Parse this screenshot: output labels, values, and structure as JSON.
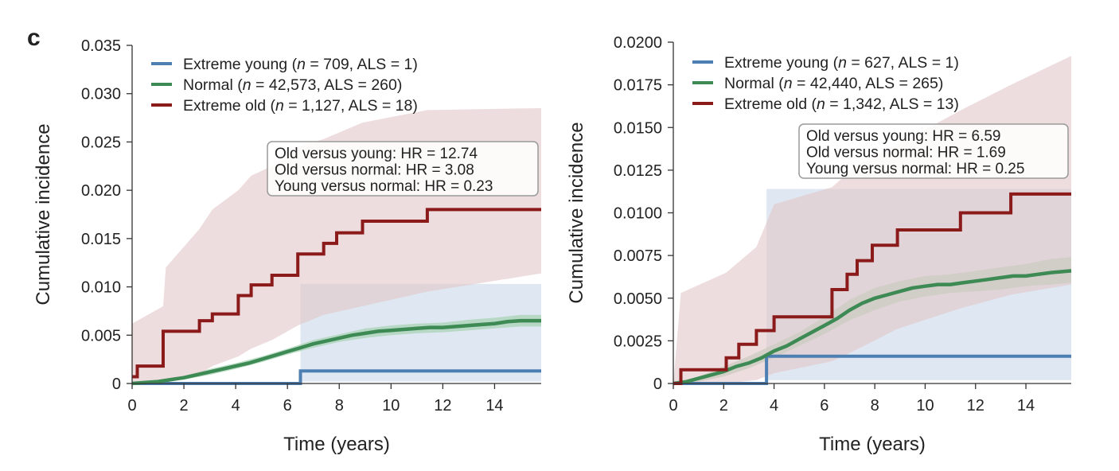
{
  "panel_letter": "c",
  "chart_data": [
    {
      "type": "line",
      "subtype": "cumulative-incidence-step",
      "xlabel": "Time (years)",
      "ylabel": "Cumulative incidence",
      "xlim": [
        0,
        15.8
      ],
      "ylim": [
        0,
        0.035
      ],
      "xticks": [
        0,
        2,
        4,
        6,
        8,
        10,
        12,
        14
      ],
      "xtick_labels": [
        "0",
        "2",
        "4",
        "6",
        "8",
        "10",
        "12",
        "14"
      ],
      "yticks": [
        0,
        0.005,
        0.01,
        0.015,
        0.02,
        0.025,
        0.03,
        0.035
      ],
      "ytick_labels": [
        "0",
        "0.005",
        "0.010",
        "0.015",
        "0.020",
        "0.025",
        "0.030",
        "0.035"
      ],
      "grid": false,
      "legend_position": "top-left",
      "annotation_box": {
        "position": "upper-right",
        "lines": [
          "Old versus young: HR = 12.74",
          "Old versus normal: HR = 3.08",
          "Young versus normal: HR = 0.23"
        ]
      },
      "series": [
        {
          "label_prefix": "Extreme young (",
          "label_italic": "n",
          "label_suffix": " = 709, ALS = 1)",
          "color": "#4e7fb3",
          "band_color": "#c9d8ea",
          "step": true,
          "x": [
            0,
            6.5,
            6.5,
            15.8
          ],
          "y": [
            0,
            0,
            0.0013,
            0.0013
          ],
          "ci_x": [
            0,
            6.5,
            6.5,
            15.8
          ],
          "ci_lower": [
            0,
            0,
            0.0002,
            0.0002
          ],
          "ci_upper": [
            0,
            0,
            0.0103,
            0.0103
          ]
        },
        {
          "label_prefix": "Normal (",
          "label_italic": "n",
          "label_suffix": " = 42,573, ALS = 260)",
          "color": "#3d8a55",
          "band_color": "#a9d3b5",
          "step": false,
          "x": [
            0,
            0.5,
            1,
            1.5,
            2,
            2.5,
            3,
            3.5,
            4,
            4.5,
            5,
            5.5,
            6,
            6.5,
            7,
            7.5,
            8,
            8.5,
            9,
            9.5,
            10,
            10.5,
            11,
            11.5,
            12,
            12.5,
            13,
            13.5,
            14,
            14.5,
            15,
            15.8
          ],
          "y": [
            0,
            0.0001,
            0.0002,
            0.0004,
            0.0006,
            0.0009,
            0.0012,
            0.0015,
            0.0018,
            0.0021,
            0.0025,
            0.0029,
            0.0033,
            0.0037,
            0.0041,
            0.0044,
            0.0047,
            0.005,
            0.0052,
            0.0054,
            0.0055,
            0.0056,
            0.0057,
            0.0058,
            0.0058,
            0.0059,
            0.006,
            0.0061,
            0.0062,
            0.0064,
            0.0065,
            0.0065
          ],
          "ci_x": [
            0,
            1,
            2,
            3,
            4,
            5,
            6,
            7,
            8,
            9,
            10,
            11,
            12,
            13,
            14,
            15,
            15.8
          ],
          "ci_lower": [
            0,
            0.0001,
            0.0004,
            0.0009,
            0.0015,
            0.0022,
            0.003,
            0.0037,
            0.0043,
            0.0047,
            0.005,
            0.0052,
            0.0053,
            0.0055,
            0.0057,
            0.0059,
            0.0059
          ],
          "ci_upper": [
            0,
            0.0003,
            0.0008,
            0.0015,
            0.0021,
            0.0028,
            0.0036,
            0.0045,
            0.0051,
            0.0057,
            0.006,
            0.0062,
            0.0063,
            0.0066,
            0.0068,
            0.0071,
            0.0071
          ]
        },
        {
          "label_prefix": "Extreme old (",
          "label_italic": "n",
          "label_suffix": " = 1,127, ALS = 18)",
          "color": "#8b1a1a",
          "band_color": "#e3c6c8",
          "step": true,
          "x": [
            0,
            0.2,
            0.2,
            1.2,
            1.2,
            2.6,
            2.6,
            3.1,
            3.1,
            4.1,
            4.1,
            4.6,
            4.6,
            5.4,
            5.4,
            6.4,
            6.4,
            7.4,
            7.4,
            7.9,
            7.9,
            8.9,
            8.9,
            11.4,
            11.4,
            15.8
          ],
          "y": [
            0.0007,
            0.0007,
            0.0018,
            0.0018,
            0.0054,
            0.0054,
            0.0065,
            0.0065,
            0.0072,
            0.0072,
            0.0091,
            0.0091,
            0.0102,
            0.0102,
            0.0112,
            0.0112,
            0.0134,
            0.0134,
            0.0145,
            0.0145,
            0.0156,
            0.0156,
            0.0168,
            0.0168,
            0.018,
            0.018
          ],
          "ci_x": [
            0,
            1.2,
            1.3,
            2.6,
            3.1,
            4.1,
            4.6,
            5.4,
            6.4,
            7.4,
            8.9,
            11.4,
            15.8
          ],
          "ci_lower": [
            0,
            0.0003,
            0.0004,
            0.001,
            0.0018,
            0.0028,
            0.0036,
            0.0045,
            0.006,
            0.0071,
            0.008,
            0.0095,
            0.0114
          ],
          "ci_upper": [
            0.0062,
            0.008,
            0.012,
            0.016,
            0.018,
            0.02,
            0.0215,
            0.0225,
            0.0245,
            0.0253,
            0.027,
            0.0283,
            0.0285
          ]
        }
      ]
    },
    {
      "type": "line",
      "subtype": "cumulative-incidence-step",
      "xlabel": "Time (years)",
      "ylabel": "Cumulative incidence",
      "xlim": [
        0,
        15.8
      ],
      "ylim": [
        0,
        0.02
      ],
      "xticks": [
        0,
        2,
        4,
        6,
        8,
        10,
        12,
        14
      ],
      "xtick_labels": [
        "0",
        "2",
        "4",
        "6",
        "8",
        "10",
        "12",
        "14"
      ],
      "yticks": [
        0,
        0.0025,
        0.005,
        0.0075,
        0.01,
        0.0125,
        0.015,
        0.0175,
        0.02
      ],
      "ytick_labels": [
        "0",
        "0.0025",
        "0.0050",
        "0.0075",
        "0.0100",
        "0.0125",
        "0.0150",
        "0.0175",
        "0.0200"
      ],
      "grid": false,
      "legend_position": "top-left",
      "annotation_box": {
        "position": "upper-right",
        "lines": [
          "Old versus young: HR = 6.59",
          "Old versus normal: HR = 1.69",
          "Young versus normal: HR = 0.25"
        ]
      },
      "series": [
        {
          "label_prefix": "Extreme young (",
          "label_italic": "n",
          "label_suffix": " = 627, ALS = 1)",
          "color": "#4e7fb3",
          "band_color": "#c9d8ea",
          "step": true,
          "x": [
            0,
            3.7,
            3.7,
            15.8
          ],
          "y": [
            0,
            0,
            0.0016,
            0.0016
          ],
          "ci_x": [
            0,
            3.7,
            3.7,
            15.8
          ],
          "ci_lower": [
            0,
            0,
            0.0002,
            0.0002
          ],
          "ci_upper": [
            0,
            0,
            0.0114,
            0.0114
          ]
        },
        {
          "label_prefix": "Normal (",
          "label_italic": "n",
          "label_suffix": " = 42,440, ALS = 265)",
          "color": "#3d8a55",
          "band_color": "#a9d3b5",
          "step": false,
          "x": [
            0,
            0.5,
            1,
            1.5,
            2,
            2.5,
            3,
            3.5,
            4,
            4.5,
            5,
            5.5,
            6,
            6.5,
            7,
            7.5,
            8,
            8.5,
            9,
            9.5,
            10,
            10.5,
            11,
            11.5,
            12,
            12.5,
            13,
            13.5,
            14,
            14.5,
            15,
            15.8
          ],
          "y": [
            0,
            0.0001,
            0.0003,
            0.0005,
            0.0007,
            0.001,
            0.0012,
            0.0015,
            0.0019,
            0.0022,
            0.0026,
            0.003,
            0.0034,
            0.0038,
            0.0043,
            0.0047,
            0.005,
            0.0052,
            0.0054,
            0.0056,
            0.0057,
            0.0058,
            0.0058,
            0.0059,
            0.006,
            0.0061,
            0.0062,
            0.0063,
            0.0063,
            0.0064,
            0.0065,
            0.0066
          ],
          "ci_x": [
            0,
            1,
            2,
            3,
            4,
            5,
            6,
            7,
            8,
            9,
            10,
            11,
            12,
            13,
            14,
            15,
            15.8
          ],
          "ci_lower": [
            0,
            0.0001,
            0.0004,
            0.0009,
            0.0015,
            0.0022,
            0.0029,
            0.0037,
            0.0043,
            0.0048,
            0.0051,
            0.0053,
            0.0054,
            0.0055,
            0.0057,
            0.0058,
            0.0059
          ],
          "ci_upper": [
            0,
            0.0004,
            0.001,
            0.0016,
            0.0023,
            0.003,
            0.0039,
            0.0049,
            0.0056,
            0.006,
            0.0063,
            0.0064,
            0.0066,
            0.0068,
            0.007,
            0.0073,
            0.0074
          ]
        },
        {
          "label_prefix": "Extreme old (",
          "label_italic": "n",
          "label_suffix": " = 1,342, ALS = 13)",
          "color": "#8b1a1a",
          "band_color": "#e3c6c8",
          "step": true,
          "x": [
            0,
            0.3,
            0.3,
            2.1,
            2.1,
            2.6,
            2.6,
            3.3,
            3.3,
            4.0,
            4.0,
            6.3,
            6.3,
            6.9,
            6.9,
            7.3,
            7.3,
            7.9,
            7.9,
            8.9,
            8.9,
            11.4,
            11.4,
            13.4,
            13.4,
            15.8
          ],
          "y": [
            0,
            0,
            0.0008,
            0.0008,
            0.0015,
            0.0015,
            0.0023,
            0.0023,
            0.0031,
            0.0031,
            0.0039,
            0.0039,
            0.0055,
            0.0055,
            0.0064,
            0.0064,
            0.0072,
            0.0072,
            0.0081,
            0.0081,
            0.009,
            0.009,
            0.01,
            0.01,
            0.0111,
            0.0111
          ],
          "ci_x": [
            0,
            0.3,
            2.1,
            3.3,
            4.0,
            6.3,
            7.3,
            8.9,
            11.4,
            13.4,
            15.8
          ],
          "ci_lower": [
            0,
            0,
            0,
            0.0002,
            0.0006,
            0.0013,
            0.002,
            0.0032,
            0.0044,
            0.0052,
            0.0058
          ],
          "ci_upper": [
            0,
            0.0053,
            0.0065,
            0.008,
            0.0105,
            0.0115,
            0.0128,
            0.014,
            0.016,
            0.0175,
            0.0192
          ]
        }
      ]
    }
  ]
}
